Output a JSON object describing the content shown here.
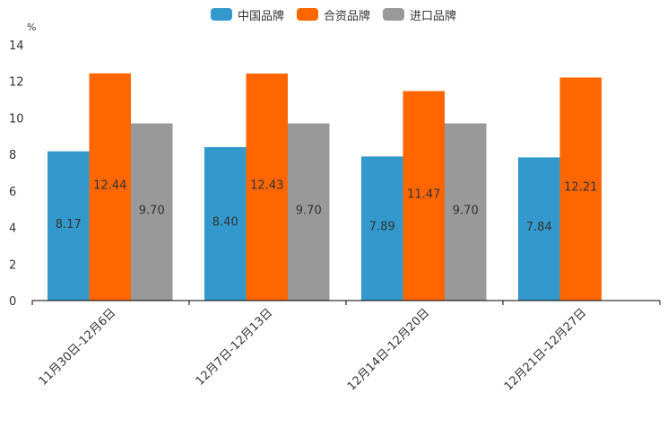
{
  "chart_data": {
    "type": "bar",
    "title": "",
    "xlabel": "",
    "ylabel": "%",
    "ylim": [
      0,
      14
    ],
    "yticks": [
      0,
      2,
      4,
      6,
      8,
      10,
      12,
      14
    ],
    "grid": false,
    "legend_position": "top-center",
    "categories": [
      "11月30日-12月6日",
      "12月7日-12月13日",
      "12月14日-12月20日",
      "12月21日-12月27日"
    ],
    "series": [
      {
        "name": "中国品牌",
        "color": "#3399cc",
        "values": [
          8.17,
          8.4,
          7.89,
          7.84
        ],
        "labels": [
          "8.17",
          "8.40",
          "7.89",
          "7.84"
        ]
      },
      {
        "name": "合资品牌",
        "color": "#ff6600",
        "values": [
          12.44,
          12.43,
          11.47,
          12.21
        ],
        "labels": [
          "12.44",
          "12.43",
          "11.47",
          "12.21"
        ]
      },
      {
        "name": "进口品牌",
        "color": "#999999",
        "values": [
          9.7,
          9.7,
          9.7,
          null
        ],
        "labels": [
          "9.70",
          "9.70",
          "9.70",
          ""
        ]
      }
    ]
  }
}
